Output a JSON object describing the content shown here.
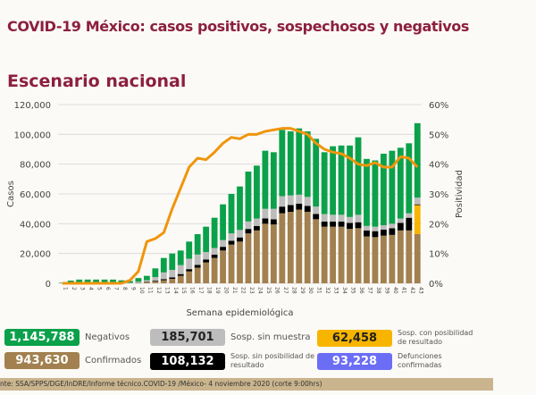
{
  "title": "COVID-19 México: casos positivos, sospechosos y negativos",
  "subtitle": "Escenario nacional",
  "legend": [
    {
      "value": "1,145,788",
      "label": "Negativos",
      "color": "#0aa14a"
    },
    {
      "value": "185,701",
      "label": "Sosp. sin muestra",
      "color": "#bdbdbd"
    },
    {
      "value": "62,458",
      "label": "Sosp. con posibilidad de resultado",
      "color": "#f7b500"
    },
    {
      "value": "943,630",
      "label": "Confirmados",
      "color": "#a2804f"
    },
    {
      "value": "108,132",
      "label": "Sosp. sin posibilidad de resultado",
      "color": "#000000"
    },
    {
      "value": "93,228",
      "label": "Defunciones confirmadas",
      "color": "#6b6ef5"
    }
  ],
  "footer": "nte: SSA/SPPS/DGE/InDRE/Informe técnico.COVID-19 /México- 4 noviembre 2020 (corte 9:00hrs)",
  "chart_data": {
    "type": "bar",
    "stacked": true,
    "xlabel": "Semana epidemiológica",
    "ylabel": "Casos",
    "y2label": "Positividad",
    "ylim": [
      0,
      120000
    ],
    "y2lim": [
      0,
      60
    ],
    "yticks": [
      "0",
      "20,000",
      "40,000",
      "60,000",
      "80,000",
      "100,000",
      "120,000"
    ],
    "y2ticks": [
      "0%",
      "10%",
      "20%",
      "30%",
      "40%",
      "50%",
      "60%"
    ],
    "grid": true,
    "categories": [
      "1",
      "2",
      "3",
      "4",
      "5",
      "6",
      "7",
      "8",
      "9",
      "10",
      "11",
      "12",
      "13",
      "14",
      "15",
      "16",
      "17",
      "18",
      "19",
      "20",
      "21",
      "22",
      "23",
      "24",
      "25",
      "26",
      "27",
      "28",
      "29",
      "30",
      "31",
      "32",
      "33",
      "34",
      "35",
      "36",
      "37",
      "38",
      "39",
      "40",
      "41",
      "42",
      "43"
    ],
    "series": [
      {
        "name": "Confirmados",
        "color": "#a2804f",
        "values": [
          0,
          0,
          0,
          0,
          0,
          0,
          0,
          0,
          0,
          300,
          800,
          1200,
          2000,
          3000,
          5000,
          8000,
          10500,
          14000,
          17000,
          22000,
          26000,
          28000,
          33500,
          35500,
          40000,
          39500,
          47000,
          48000,
          49500,
          48000,
          43000,
          38000,
          38000,
          38000,
          36500,
          37000,
          31500,
          31000,
          32000,
          32500,
          35500,
          35500,
          33000
        ]
      },
      {
        "name": "Sosp. con posibilidad de resultado",
        "color": "#f7b500",
        "values": [
          0,
          0,
          0,
          0,
          0,
          0,
          0,
          0,
          0,
          0,
          0,
          0,
          0,
          0,
          0,
          0,
          0,
          0,
          0,
          0,
          0,
          0,
          0,
          0,
          0,
          0,
          0,
          0,
          0,
          0,
          0,
          0,
          0,
          0,
          0,
          0,
          0,
          0,
          0,
          0,
          0,
          0,
          19500
        ]
      },
      {
        "name": "Sosp. sin posibilidad de resultado",
        "color": "#000000",
        "values": [
          0,
          0,
          0,
          0,
          0,
          0,
          0,
          0,
          0,
          100,
          300,
          500,
          800,
          1000,
          1200,
          1500,
          1800,
          2000,
          2200,
          2500,
          2500,
          2800,
          3000,
          3000,
          3500,
          3500,
          4500,
          4500,
          4000,
          4000,
          3500,
          3500,
          3500,
          3500,
          4000,
          4000,
          4000,
          4000,
          4000,
          4500,
          5000,
          8500,
          500
        ]
      },
      {
        "name": "Sosp. sin muestra",
        "color": "#bdbdbd",
        "values": [
          200,
          300,
          300,
          300,
          300,
          300,
          300,
          300,
          300,
          700,
          1000,
          2500,
          4500,
          5000,
          6000,
          7000,
          7000,
          5000,
          4500,
          4500,
          5000,
          5000,
          5000,
          5000,
          6500,
          7000,
          7000,
          6500,
          6000,
          6000,
          5000,
          5000,
          4500,
          4500,
          4000,
          5000,
          3000,
          3000,
          3000,
          3000,
          3000,
          3000,
          4500
        ]
      },
      {
        "name": "Negativos",
        "color": "#0aa14a",
        "values": [
          300,
          1500,
          2200,
          2200,
          2200,
          2200,
          2200,
          1700,
          1200,
          2400,
          2900,
          5800,
          9700,
          11000,
          9800,
          11500,
          13700,
          17000,
          20300,
          24000,
          26500,
          29200,
          33500,
          35500,
          39000,
          38000,
          44500,
          43000,
          44500,
          44000,
          45500,
          41500,
          46000,
          46500,
          48000,
          52000,
          45000,
          44500,
          48000,
          49000,
          47500,
          47000,
          50000
        ]
      }
    ],
    "line": {
      "name": "Positividad",
      "color": "#f0950c",
      "axis": "y2",
      "values": [
        0,
        0,
        0,
        0,
        0,
        0,
        0,
        0,
        1,
        4,
        14,
        15,
        17,
        25,
        32,
        39,
        42,
        41.5,
        44,
        47,
        49,
        48.5,
        50,
        50,
        51,
        51.5,
        52,
        52,
        51,
        50,
        47,
        45,
        44,
        43.5,
        42,
        40,
        39.5,
        40.5,
        39,
        39,
        42.5,
        42,
        39
      ]
    }
  }
}
